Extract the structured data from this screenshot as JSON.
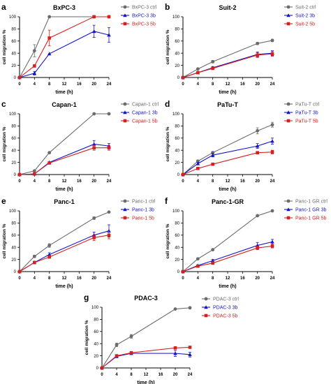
{
  "colors": {
    "ctrl": "#6b6b6b",
    "3b": "#1515c8",
    "5b": "#d62020",
    "axis": "#000000"
  },
  "chart_data": [
    {
      "letter": "a",
      "title": "BxPC-3",
      "type": "line",
      "xlabel": "time (h)",
      "ylabel": "cell migration %",
      "xticks": [
        "0",
        "4",
        "8",
        "12",
        "16",
        "20",
        "24"
      ],
      "yticks": [
        "0",
        "20",
        "40",
        "60",
        "80",
        "100"
      ],
      "xlim": [
        0,
        24
      ],
      "ylim": [
        0,
        100
      ],
      "legend_position": "right",
      "x": [
        0,
        4,
        8,
        20,
        24
      ],
      "series": [
        {
          "name": "BxPC-3 ctrl",
          "color_key": "ctrl",
          "marker": "circle",
          "values": [
            0,
            44,
            100,
            100,
            100
          ],
          "errors": [
            0,
            10,
            0,
            0,
            0
          ]
        },
        {
          "name": "BxPC-3 3b",
          "color_key": "3b",
          "marker": "triangle",
          "values": [
            0,
            7,
            39,
            76,
            70
          ],
          "errors": [
            0,
            3,
            0,
            10,
            12
          ]
        },
        {
          "name": "BxPC-3 5b",
          "color_key": "5b",
          "marker": "square",
          "values": [
            0,
            19,
            65,
            100,
            100
          ],
          "errors": [
            0,
            2,
            13,
            0,
            0
          ]
        }
      ]
    },
    {
      "letter": "b",
      "title": "Suit-2",
      "type": "line",
      "xlabel": "time (h)",
      "ylabel": "cell migration %",
      "xticks": [
        "0",
        "4",
        "8",
        "12",
        "16",
        "20",
        "24"
      ],
      "yticks": [
        "0",
        "20",
        "40",
        "60",
        "80",
        "100"
      ],
      "xlim": [
        0,
        24
      ],
      "ylim": [
        0,
        100
      ],
      "legend_position": "right",
      "x": [
        0,
        4,
        8,
        20,
        24
      ],
      "series": [
        {
          "name": "Suit-2 ctrl",
          "color_key": "ctrl",
          "marker": "circle",
          "values": [
            0,
            14,
            26,
            56,
            61
          ],
          "errors": [
            0,
            1,
            2,
            2,
            2
          ]
        },
        {
          "name": "Suit-2 3b",
          "color_key": "3b",
          "marker": "triangle",
          "values": [
            0,
            8,
            16,
            38,
            40
          ],
          "errors": [
            0,
            1,
            2,
            4,
            4
          ]
        },
        {
          "name": "Suit-2 5b",
          "color_key": "5b",
          "marker": "square",
          "values": [
            0,
            8,
            15,
            37,
            39
          ],
          "errors": [
            0,
            1,
            1,
            4,
            4
          ]
        }
      ]
    },
    {
      "letter": "c",
      "title": "Capan-1",
      "type": "line",
      "xlabel": "time (h)",
      "ylabel": "cell migration %",
      "xticks": [
        "0",
        "4",
        "8",
        "12",
        "16",
        "20",
        "24"
      ],
      "yticks": [
        "0",
        "20",
        "40",
        "60",
        "80",
        "100"
      ],
      "xlim": [
        0,
        24
      ],
      "ylim": [
        0,
        100
      ],
      "legend_position": "right",
      "x": [
        0,
        4,
        8,
        20,
        24
      ],
      "series": [
        {
          "name": "Capan-1 ctrl",
          "color_key": "ctrl",
          "marker": "circle",
          "values": [
            0,
            6,
            36,
            100,
            100
          ],
          "errors": [
            0,
            1,
            1,
            0,
            0
          ]
        },
        {
          "name": "Capan-1 3b",
          "color_key": "3b",
          "marker": "triangle",
          "values": [
            0,
            1,
            20,
            50,
            47
          ],
          "errors": [
            0,
            1,
            1,
            6,
            4
          ]
        },
        {
          "name": "Capan-1 5b",
          "color_key": "5b",
          "marker": "square",
          "values": [
            0,
            1,
            19,
            44,
            44
          ],
          "errors": [
            0,
            1,
            1,
            4,
            4
          ]
        }
      ]
    },
    {
      "letter": "d",
      "title": "PaTu-T",
      "type": "line",
      "xlabel": "time (h)",
      "ylabel": "cell migration %",
      "xticks": [
        "0",
        "4",
        "8",
        "12",
        "16",
        "20",
        "24"
      ],
      "yticks": [
        "0",
        "20",
        "40",
        "60",
        "80",
        "100"
      ],
      "xlim": [
        0,
        24
      ],
      "ylim": [
        0,
        100
      ],
      "legend_position": "right",
      "x": [
        0,
        4,
        8,
        20,
        24
      ],
      "series": [
        {
          "name": "PaTu-T ctrl",
          "color_key": "ctrl",
          "marker": "circle",
          "values": [
            0,
            22,
            36,
            72,
            82
          ],
          "errors": [
            0,
            2,
            2,
            5,
            4
          ]
        },
        {
          "name": "PaTu-T 3b",
          "color_key": "3b",
          "marker": "triangle",
          "values": [
            0,
            18,
            32,
            47,
            55
          ],
          "errors": [
            0,
            2,
            3,
            4,
            5
          ]
        },
        {
          "name": "PaTu-T 5b",
          "color_key": "5b",
          "marker": "square",
          "values": [
            0,
            10,
            17,
            36,
            37
          ],
          "errors": [
            0,
            1,
            1,
            2,
            3
          ]
        }
      ]
    },
    {
      "letter": "e",
      "title": "Panc-1",
      "type": "line",
      "xlabel": "time (h)",
      "ylabel": "cell migration %",
      "xticks": [
        "0",
        "4",
        "8",
        "12",
        "16",
        "20",
        "24"
      ],
      "yticks": [
        "0",
        "20",
        "40",
        "60",
        "80",
        "100"
      ],
      "xlim": [
        0,
        24
      ],
      "ylim": [
        0,
        100
      ],
      "legend_position": "right",
      "x": [
        0,
        4,
        8,
        20,
        24
      ],
      "series": [
        {
          "name": "Panc-1 ctrl",
          "color_key": "ctrl",
          "marker": "circle",
          "values": [
            0,
            25,
            43,
            88,
            98
          ],
          "errors": [
            0,
            2,
            3,
            2,
            1
          ]
        },
        {
          "name": "Panc-1 3b",
          "color_key": "3b",
          "marker": "triangle",
          "values": [
            0,
            15,
            28,
            60,
            67
          ],
          "errors": [
            0,
            2,
            3,
            5,
            10
          ]
        },
        {
          "name": "Panc-1 5b",
          "color_key": "5b",
          "marker": "square",
          "values": [
            0,
            15,
            24,
            56,
            60
          ],
          "errors": [
            0,
            1,
            2,
            5,
            6
          ]
        }
      ]
    },
    {
      "letter": "f",
      "title": "Panc-1-GR",
      "type": "line",
      "xlabel": "time (h)",
      "ylabel": "cell migration %",
      "xticks": [
        "0",
        "4",
        "8",
        "12",
        "16",
        "20",
        "24"
      ],
      "yticks": [
        "0",
        "20",
        "40",
        "60",
        "80",
        "100"
      ],
      "xlim": [
        0,
        24
      ],
      "ylim": [
        0,
        100
      ],
      "legend_position": "right",
      "x": [
        0,
        4,
        8,
        20,
        24
      ],
      "series": [
        {
          "name": "Panc-1 GR ctrl",
          "color_key": "ctrl",
          "marker": "circle",
          "values": [
            0,
            21,
            36,
            92,
            100
          ],
          "errors": [
            0,
            1,
            1,
            1,
            0
          ]
        },
        {
          "name": "Panc-1 GR 3b",
          "color_key": "3b",
          "marker": "triangle",
          "values": [
            0,
            10,
            18,
            43,
            49
          ],
          "errors": [
            0,
            1,
            2,
            5,
            4
          ]
        },
        {
          "name": "Panc-1 GR 5b",
          "color_key": "5b",
          "marker": "square",
          "values": [
            0,
            9,
            14,
            39,
            42
          ],
          "errors": [
            0,
            1,
            1,
            3,
            3
          ]
        }
      ]
    },
    {
      "letter": "g",
      "title": "PDAC-3",
      "type": "line",
      "xlabel": "time (h)",
      "ylabel": "cell migration %",
      "xticks": [
        "0",
        "4",
        "8",
        "12",
        "16",
        "20",
        "24"
      ],
      "yticks": [
        "0",
        "20",
        "40",
        "60",
        "80",
        "100"
      ],
      "xlim": [
        0,
        24
      ],
      "ylim": [
        0,
        100
      ],
      "legend_position": "right",
      "x": [
        0,
        4,
        8,
        20,
        24
      ],
      "series": [
        {
          "name": "PDAC-3 ctrl",
          "color_key": "ctrl",
          "marker": "circle",
          "values": [
            0,
            38,
            52,
            97,
            99
          ],
          "errors": [
            0,
            3,
            3,
            1,
            1
          ]
        },
        {
          "name": "PDAC-3 3b",
          "color_key": "3b",
          "marker": "triangle",
          "values": [
            0,
            19,
            24,
            24,
            22
          ],
          "errors": [
            0,
            2,
            2,
            5,
            4
          ]
        },
        {
          "name": "PDAC-3 5b",
          "color_key": "5b",
          "marker": "square",
          "values": [
            0,
            20,
            25,
            33,
            34
          ],
          "errors": [
            0,
            1,
            2,
            2,
            1
          ]
        }
      ]
    }
  ]
}
